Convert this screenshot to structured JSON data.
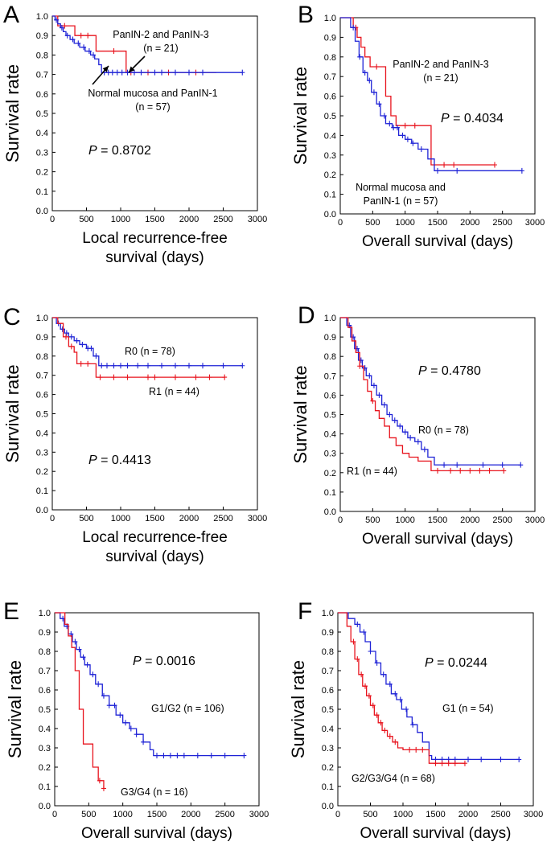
{
  "chart_data": [
    {
      "type": "line",
      "panel": "A",
      "xlabel": [
        "Local recurrence-free",
        "survival (days)"
      ],
      "ylabel": "Survival rate",
      "xlim": [
        0,
        3000
      ],
      "ylim": [
        0,
        1.0
      ],
      "xticks": [
        "0",
        "500",
        "1000",
        "1500",
        "2000",
        "2500",
        "3000"
      ],
      "yticks": [
        "0.0",
        "0.1",
        "0.2",
        "0.3",
        "0.4",
        "0.5",
        "0.6",
        "0.7",
        "0.8",
        "0.9",
        "1.0"
      ],
      "pvalue": {
        "label": "P",
        "text": " = 0.8702"
      },
      "series": [
        {
          "name": "PanIN-2 and PanIN-3 (n = 21)",
          "color": "#e8141e",
          "x": [
            0,
            80,
            330,
            640,
            1080,
            2400
          ],
          "y": [
            1.0,
            0.95,
            0.9,
            0.82,
            0.71,
            0.71
          ],
          "censors_x": [
            180,
            420,
            520,
            900,
            1150,
            1400,
            1700,
            2100
          ]
        },
        {
          "name": "Normal mucosa and PanIN-1 (n = 57)",
          "color": "#1f23d6",
          "x": [
            0,
            40,
            80,
            120,
            160,
            200,
            260,
            320,
            400,
            480,
            560,
            620,
            680,
            720,
            2780
          ],
          "y": [
            1.0,
            0.98,
            0.96,
            0.94,
            0.92,
            0.9,
            0.88,
            0.86,
            0.84,
            0.82,
            0.8,
            0.78,
            0.75,
            0.71,
            0.71
          ],
          "censors_x": [
            60,
            140,
            220,
            300,
            380,
            460,
            540,
            600,
            760,
            820,
            880,
            950,
            1020,
            1100,
            1200,
            1300,
            1500,
            1600,
            1800,
            2000,
            2200,
            2780
          ]
        }
      ],
      "annotations": [
        {
          "lines": [
            "PanIN-2 and PanIN-3",
            "(n = 21)"
          ]
        },
        {
          "lines": [
            "Normal mucosa and PanIN-1",
            "(n = 57)"
          ]
        }
      ]
    },
    {
      "type": "line",
      "panel": "B",
      "xlabel": [
        "Overall survival (days)"
      ],
      "ylabel": "Survival rate",
      "xlim": [
        0,
        3000
      ],
      "ylim": [
        0,
        1.0
      ],
      "xticks": [
        "0",
        "500",
        "1000",
        "1500",
        "2000",
        "2500",
        "3000"
      ],
      "yticks": [
        "0.0",
        "0.1",
        "0.2",
        "0.3",
        "0.4",
        "0.5",
        "0.6",
        "0.7",
        "0.8",
        "0.9",
        "1.0"
      ],
      "pvalue": {
        "label": "P",
        "text": " = 0.4034"
      },
      "series": [
        {
          "name": "PanIN-2 and PanIN-3 (n = 21)",
          "color": "#e8141e",
          "x": [
            0,
            200,
            260,
            320,
            380,
            460,
            560,
            700,
            780,
            860,
            1300,
            1400,
            2380
          ],
          "y": [
            1.0,
            0.95,
            0.9,
            0.85,
            0.8,
            0.75,
            0.75,
            0.6,
            0.5,
            0.45,
            0.45,
            0.25,
            0.25
          ],
          "censors_x": [
            240,
            560,
            1000,
            1150,
            1600,
            1750,
            2380
          ]
        },
        {
          "name": "Normal mucosa and PanIN-1 (n = 57)",
          "color": "#1f23d6",
          "x": [
            0,
            160,
            230,
            290,
            350,
            420,
            480,
            560,
            620,
            700,
            800,
            900,
            1000,
            1100,
            1200,
            1350,
            1450,
            2800
          ],
          "y": [
            1.0,
            0.95,
            0.88,
            0.8,
            0.72,
            0.68,
            0.62,
            0.56,
            0.5,
            0.46,
            0.44,
            0.4,
            0.38,
            0.36,
            0.33,
            0.28,
            0.22,
            0.22
          ],
          "censors_x": [
            200,
            300,
            380,
            450,
            520,
            600,
            680,
            760,
            820,
            880,
            960,
            1040,
            1120,
            1250,
            1500,
            1800,
            2800
          ]
        }
      ],
      "annotations": [
        {
          "lines": [
            "PanIN-2 and PanIN-3",
            "(n = 21)"
          ]
        },
        {
          "lines": [
            "Normal mucosa and",
            "PanIN-1 (n = 57)"
          ]
        }
      ]
    },
    {
      "type": "line",
      "panel": "C",
      "xlabel": [
        "Local recurrence-free",
        "survival (days)"
      ],
      "ylabel": "Survival rate",
      "xlim": [
        0,
        3000
      ],
      "ylim": [
        0,
        1.0
      ],
      "xticks": [
        "0",
        "500",
        "1000",
        "1500",
        "2000",
        "2500",
        "3000"
      ],
      "yticks": [
        "0.0",
        "0.1",
        "0.2",
        "0.3",
        "0.4",
        "0.5",
        "0.6",
        "0.7",
        "0.8",
        "0.9",
        "1.0"
      ],
      "pvalue": {
        "label": "P",
        "text": " = 0.4413"
      },
      "series": [
        {
          "name": "R0 (n = 78)",
          "color": "#1f23d6",
          "x": [
            0,
            60,
            120,
            180,
            240,
            320,
            400,
            500,
            600,
            680,
            2780
          ],
          "y": [
            1.0,
            0.97,
            0.94,
            0.92,
            0.9,
            0.88,
            0.86,
            0.84,
            0.8,
            0.75,
            0.75
          ],
          "censors_x": [
            90,
            150,
            210,
            280,
            360,
            440,
            520,
            570,
            640,
            720,
            800,
            900,
            1000,
            1100,
            1250,
            1400,
            1600,
            1800,
            2000,
            2200,
            2500,
            2780
          ]
        },
        {
          "name": "R1 (n = 44)",
          "color": "#e8141e",
          "x": [
            0,
            80,
            160,
            240,
            320,
            360,
            640,
            2520
          ],
          "y": [
            1.0,
            0.97,
            0.9,
            0.85,
            0.82,
            0.76,
            0.69,
            0.69
          ],
          "censors_x": [
            200,
            280,
            420,
            520,
            700,
            900,
            1100,
            1400,
            1500,
            1800,
            2100,
            2300,
            2520
          ]
        }
      ],
      "annotations": [
        {
          "lines": [
            "R0 (n = 78)"
          ]
        },
        {
          "lines": [
            "R1 (n = 44)"
          ]
        }
      ]
    },
    {
      "type": "line",
      "panel": "D",
      "xlabel": [
        "Overall survival (days)"
      ],
      "ylabel": "Survival rate",
      "xlim": [
        0,
        3000
      ],
      "ylim": [
        0,
        1.0
      ],
      "xticks": [
        "0",
        "500",
        "1000",
        "1500",
        "2000",
        "2500",
        "3000"
      ],
      "yticks": [
        "0.0",
        "0.1",
        "0.2",
        "0.3",
        "0.4",
        "0.5",
        "0.6",
        "0.7",
        "0.8",
        "0.9",
        "1.0"
      ],
      "pvalue": {
        "label": "P",
        "text": " = 0.4780"
      },
      "series": [
        {
          "name": "R0 (n = 78)",
          "color": "#1f23d6",
          "x": [
            0,
            100,
            160,
            220,
            280,
            340,
            400,
            480,
            560,
            640,
            720,
            800,
            880,
            960,
            1040,
            1150,
            1250,
            1350,
            1450,
            2780
          ],
          "y": [
            1.0,
            0.96,
            0.9,
            0.84,
            0.78,
            0.74,
            0.7,
            0.65,
            0.6,
            0.55,
            0.5,
            0.47,
            0.44,
            0.41,
            0.38,
            0.36,
            0.32,
            0.28,
            0.24,
            0.24
          ],
          "censors_x": [
            140,
            200,
            260,
            320,
            380,
            450,
            520,
            600,
            680,
            760,
            840,
            920,
            1000,
            1080,
            1200,
            1300,
            1600,
            1800,
            2200,
            2500,
            2780
          ]
        },
        {
          "name": "R1 (n = 44)",
          "color": "#e8141e",
          "x": [
            0,
            120,
            180,
            240,
            300,
            360,
            420,
            480,
            540,
            600,
            680,
            760,
            860,
            960,
            1060,
            1200,
            1400,
            2520
          ],
          "y": [
            1.0,
            0.95,
            0.88,
            0.82,
            0.75,
            0.68,
            0.62,
            0.57,
            0.52,
            0.48,
            0.44,
            0.38,
            0.34,
            0.3,
            0.28,
            0.26,
            0.21,
            0.21
          ],
          "censors_x": [
            300,
            500,
            1500,
            1700,
            1850,
            2000,
            2150,
            2300,
            2520
          ]
        }
      ],
      "annotations": [
        {
          "lines": [
            "R0 (n = 78)"
          ]
        },
        {
          "lines": [
            "R1 (n = 44)"
          ]
        }
      ]
    },
    {
      "type": "line",
      "panel": "E",
      "xlabel": [
        "Overall survival (days)"
      ],
      "ylabel": "Survival rate",
      "xlim": [
        0,
        3000
      ],
      "ylim": [
        0,
        1.0
      ],
      "xticks": [
        "0",
        "500",
        "1000",
        "1500",
        "2000",
        "2500",
        "3000"
      ],
      "yticks": [
        "0.0",
        "0.1",
        "0.2",
        "0.3",
        "0.4",
        "0.5",
        "0.6",
        "0.7",
        "0.8",
        "0.9",
        "1.0"
      ],
      "pvalue": {
        "label": "P",
        "text": " = 0.0016"
      },
      "series": [
        {
          "name": "G1/G2 (n = 106)",
          "color": "#1f23d6",
          "x": [
            0,
            80,
            140,
            200,
            260,
            320,
            380,
            440,
            520,
            600,
            700,
            800,
            900,
            1000,
            1100,
            1200,
            1300,
            1400,
            1450,
            2780
          ],
          "y": [
            1.0,
            0.97,
            0.93,
            0.89,
            0.85,
            0.81,
            0.77,
            0.73,
            0.68,
            0.63,
            0.57,
            0.52,
            0.47,
            0.43,
            0.4,
            0.37,
            0.33,
            0.29,
            0.26,
            0.26
          ],
          "censors_x": [
            120,
            180,
            240,
            300,
            360,
            420,
            480,
            560,
            640,
            720,
            800,
            880,
            960,
            1040,
            1120,
            1200,
            1300,
            1500,
            1600,
            1700,
            1800,
            1900,
            2100,
            2300,
            2500,
            2780
          ]
        },
        {
          "name": "G3/G4 (n = 16)",
          "color": "#e8141e",
          "x": [
            0,
            150,
            200,
            250,
            300,
            360,
            420,
            560,
            640,
            720
          ],
          "y": [
            1.0,
            0.94,
            0.88,
            0.82,
            0.7,
            0.5,
            0.32,
            0.2,
            0.13,
            0.09
          ],
          "censors_x": [
            660,
            720
          ]
        }
      ],
      "annotations": [
        {
          "lines": [
            "G1/G2 (n = 106)"
          ]
        },
        {
          "lines": [
            "G3/G4 (n = 16)"
          ]
        }
      ]
    },
    {
      "type": "line",
      "panel": "F",
      "xlabel": [
        "Overall survival (days)"
      ],
      "ylabel": "Survival rate",
      "xlim": [
        0,
        3000
      ],
      "ylim": [
        0,
        1.0
      ],
      "xticks": [
        "0",
        "500",
        "1000",
        "1500",
        "2000",
        "2500",
        "3000"
      ],
      "yticks": [
        "0.0",
        "0.1",
        "0.2",
        "0.3",
        "0.4",
        "0.5",
        "0.6",
        "0.7",
        "0.8",
        "0.9",
        "1.0"
      ],
      "pvalue": {
        "label": "P",
        "text": " = 0.0244"
      },
      "series": [
        {
          "name": "G1 (n = 54)",
          "color": "#1f23d6",
          "x": [
            0,
            160,
            260,
            340,
            420,
            500,
            580,
            660,
            740,
            820,
            900,
            980,
            1060,
            1140,
            1220,
            1300,
            1400,
            1440,
            2780
          ],
          "y": [
            1.0,
            0.97,
            0.94,
            0.9,
            0.85,
            0.8,
            0.74,
            0.68,
            0.63,
            0.58,
            0.55,
            0.5,
            0.46,
            0.42,
            0.38,
            0.33,
            0.26,
            0.24,
            0.24
          ],
          "censors_x": [
            300,
            400,
            500,
            600,
            700,
            800,
            880,
            960,
            1050,
            1150,
            1500,
            1600,
            1700,
            1800,
            2000,
            2200,
            2500,
            2780
          ]
        },
        {
          "name": "G2/G3/G4 (n = 68)",
          "color": "#e8141e",
          "x": [
            0,
            140,
            200,
            260,
            320,
            380,
            440,
            500,
            560,
            620,
            680,
            760,
            840,
            920,
            1000,
            1400,
            1950
          ],
          "y": [
            1.0,
            0.93,
            0.85,
            0.76,
            0.68,
            0.62,
            0.57,
            0.52,
            0.47,
            0.43,
            0.39,
            0.36,
            0.33,
            0.3,
            0.29,
            0.22,
            0.22
          ],
          "censors_x": [
            240,
            300,
            360,
            420,
            480,
            540,
            600,
            660,
            720,
            800,
            880,
            1100,
            1200,
            1300,
            1500,
            1600,
            1700,
            1800,
            1950
          ]
        }
      ],
      "annotations": [
        {
          "lines": [
            "G1 (n = 54)"
          ]
        },
        {
          "lines": [
            "G2/G3/G4 (n = 68)"
          ]
        }
      ]
    }
  ]
}
